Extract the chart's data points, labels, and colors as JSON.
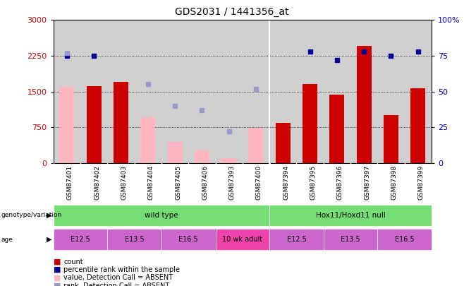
{
  "title": "GDS2031 / 1441356_at",
  "samples": [
    "GSM87401",
    "GSM87402",
    "GSM87403",
    "GSM87404",
    "GSM87405",
    "GSM87406",
    "GSM87393",
    "GSM87400",
    "GSM87394",
    "GSM87395",
    "GSM87396",
    "GSM87397",
    "GSM87398",
    "GSM87399"
  ],
  "count_present": [
    null,
    1620,
    1700,
    null,
    null,
    null,
    null,
    null,
    840,
    1650,
    1430,
    2450,
    1000,
    1570
  ],
  "count_absent": [
    1600,
    null,
    null,
    960,
    440,
    270,
    100,
    740,
    null,
    null,
    null,
    null,
    null,
    null
  ],
  "rank_present_pct": [
    75,
    75,
    null,
    null,
    null,
    null,
    null,
    null,
    null,
    78,
    72,
    78,
    75,
    78
  ],
  "rank_absent_pct": [
    77,
    null,
    null,
    55,
    40,
    37,
    22,
    52,
    null,
    null,
    null,
    null,
    null,
    null
  ],
  "ylim_left": [
    0,
    3000
  ],
  "ylim_right": [
    0,
    100
  ],
  "yticks_left": [
    0,
    750,
    1500,
    2250,
    3000
  ],
  "yticks_right": [
    0,
    25,
    50,
    75,
    100
  ],
  "genotype_groups": [
    {
      "label": "wild type",
      "start": 0,
      "end": 8
    },
    {
      "label": "Hox11/Hoxd11 null",
      "start": 8,
      "end": 14
    }
  ],
  "age_groups": [
    {
      "label": "E12.5",
      "start": 0,
      "end": 2,
      "color": "#CC66CC"
    },
    {
      "label": "E13.5",
      "start": 2,
      "end": 4,
      "color": "#CC66CC"
    },
    {
      "label": "E16.5",
      "start": 4,
      "end": 6,
      "color": "#CC66CC"
    },
    {
      "label": "10 wk adult",
      "start": 6,
      "end": 8,
      "color": "#EE44AA"
    },
    {
      "label": "E12.5",
      "start": 8,
      "end": 10,
      "color": "#CC66CC"
    },
    {
      "label": "E13.5",
      "start": 10,
      "end": 12,
      "color": "#CC66CC"
    },
    {
      "label": "E16.5",
      "start": 12,
      "end": 14,
      "color": "#CC66CC"
    }
  ],
  "color_count_present": "#CC0000",
  "color_count_absent": "#FFB6C1",
  "color_rank_present": "#000099",
  "color_rank_absent": "#9999CC",
  "genotype_color": "#77DD77",
  "plot_bg": "#D0D0D0",
  "xlabel_area_bg": "#C0C0C0"
}
